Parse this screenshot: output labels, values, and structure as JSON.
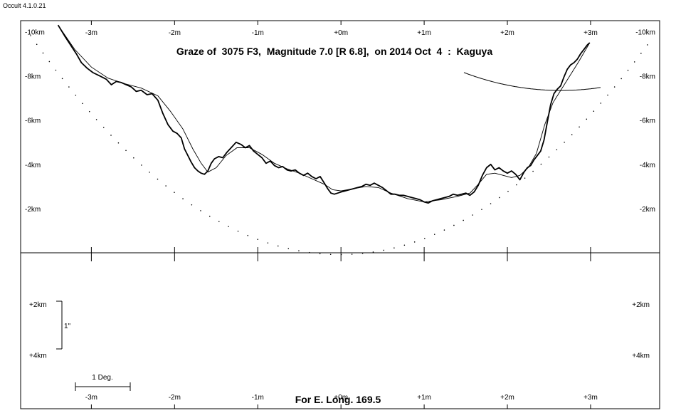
{
  "app": {
    "version_label": "Occult 4.1.0.21"
  },
  "chart_data": {
    "type": "line",
    "title": "Graze of  3075 F3,  Magnitude 7.0 [R 6.8],  on 2014 Oct  4  :  Kaguya",
    "footer": "For E. Long. 169.5",
    "x_tick_labels": [
      "-3m",
      "-2m",
      "-1m",
      "+0m",
      "+1m",
      "+2m",
      "+3m"
    ],
    "x_ticks": [
      -3,
      -2,
      -1,
      0,
      1,
      2,
      3
    ],
    "xlim": [
      -3.85,
      3.83
    ],
    "upper_ylim_km": [
      0,
      10.5
    ],
    "lower_ylim_km": [
      0,
      6.1
    ],
    "upper_y_ticks": [
      {
        "value": 10,
        "label": "-10km"
      },
      {
        "value": 8,
        "label": "-8km"
      },
      {
        "value": 6,
        "label": "-6km"
      },
      {
        "value": 4,
        "label": "-4km"
      },
      {
        "value": 2,
        "label": "-2km"
      }
    ],
    "lower_y_ticks": [
      {
        "value": 2,
        "label": "+2km"
      },
      {
        "value": 4,
        "label": "+4km"
      }
    ],
    "scale_bar_vertical": {
      "label": "1\"",
      "from_km": 2,
      "to_km": 4
    },
    "scale_bar_horizontal": {
      "label": "1 Deg.",
      "from_x": -3.18,
      "to_x": -2.52
    },
    "series": [
      {
        "x": [
          -3.4,
          -3.32,
          -3.25,
          -3.18,
          -3.12,
          -3.05,
          -2.98,
          -2.9,
          -2.82,
          -2.76,
          -2.7,
          -2.64,
          -2.58,
          -2.52,
          -2.46,
          -2.4,
          -2.33,
          -2.27,
          -2.2,
          -2.14,
          -2.08,
          -2.02,
          -1.97,
          -1.92,
          -1.88,
          -1.84,
          -1.8,
          -1.76,
          -1.72,
          -1.68,
          -1.64,
          -1.6,
          -1.56,
          -1.52,
          -1.47,
          -1.42,
          -1.37,
          -1.32,
          -1.26,
          -1.2,
          -1.15,
          -1.1,
          -1.05,
          -1.0,
          -0.95,
          -0.9,
          -0.85,
          -0.8,
          -0.75,
          -0.7,
          -0.65,
          -0.6,
          -0.55,
          -0.5,
          -0.45,
          -0.4,
          -0.35,
          -0.3,
          -0.25,
          -0.2,
          -0.16,
          -0.12,
          -0.08,
          -0.04,
          0.0,
          0.05,
          0.1,
          0.15,
          0.2,
          0.25,
          0.3,
          0.35,
          0.4,
          0.45,
          0.5,
          0.55,
          0.6,
          0.65,
          0.7,
          0.75,
          0.8,
          0.85,
          0.9,
          0.95,
          1.0,
          1.05,
          1.1,
          1.15,
          1.2,
          1.25,
          1.3,
          1.35,
          1.4,
          1.45,
          1.5,
          1.55,
          1.6,
          1.65,
          1.7,
          1.75,
          1.8,
          1.85,
          1.9,
          1.95,
          2.0,
          2.05,
          2.1,
          2.15,
          2.2,
          2.24,
          2.28,
          2.32,
          2.36,
          2.4,
          2.44,
          2.48,
          2.52,
          2.56,
          2.6,
          2.64,
          2.68,
          2.72,
          2.76,
          2.8,
          2.84,
          2.88,
          2.92,
          2.96,
          2.99
        ],
        "y": [
          10.3,
          9.8,
          9.4,
          9.0,
          8.6,
          8.35,
          8.15,
          8.0,
          7.85,
          7.6,
          7.75,
          7.7,
          7.6,
          7.5,
          7.3,
          7.35,
          7.15,
          7.2,
          6.9,
          6.3,
          5.8,
          5.5,
          5.4,
          5.2,
          4.7,
          4.4,
          4.1,
          3.85,
          3.7,
          3.6,
          3.55,
          3.7,
          4.05,
          4.25,
          4.35,
          4.3,
          4.55,
          4.75,
          5.0,
          4.9,
          4.75,
          4.85,
          4.6,
          4.45,
          4.3,
          4.05,
          4.15,
          3.95,
          3.85,
          3.9,
          3.75,
          3.7,
          3.75,
          3.6,
          3.5,
          3.6,
          3.45,
          3.35,
          3.45,
          3.15,
          2.9,
          2.7,
          2.65,
          2.7,
          2.75,
          2.8,
          2.85,
          2.9,
          2.95,
          3.0,
          3.1,
          3.05,
          3.15,
          3.05,
          2.95,
          2.8,
          2.65,
          2.65,
          2.6,
          2.6,
          2.55,
          2.5,
          2.45,
          2.4,
          2.3,
          2.25,
          2.35,
          2.4,
          2.45,
          2.5,
          2.55,
          2.65,
          2.6,
          2.65,
          2.7,
          2.6,
          2.75,
          3.05,
          3.5,
          3.85,
          4.0,
          3.75,
          3.85,
          3.7,
          3.6,
          3.7,
          3.55,
          3.3,
          3.65,
          3.85,
          3.95,
          4.2,
          4.4,
          4.6,
          5.1,
          5.9,
          6.7,
          7.2,
          7.4,
          7.55,
          7.95,
          8.3,
          8.5,
          8.6,
          8.75,
          9.0,
          9.2,
          9.4,
          9.5
        ]
      },
      {
        "x": [
          -3.4,
          -3.2,
          -3.0,
          -2.8,
          -2.6,
          -2.4,
          -2.2,
          -2.05,
          -1.9,
          -1.78,
          -1.68,
          -1.6,
          -1.5,
          -1.38,
          -1.25,
          -1.1,
          -0.95,
          -0.8,
          -0.65,
          -0.5,
          -0.35,
          -0.2,
          -0.1,
          0.0,
          0.15,
          0.3,
          0.45,
          0.6,
          0.8,
          1.0,
          1.2,
          1.4,
          1.55,
          1.65,
          1.75,
          1.85,
          1.95,
          2.05,
          2.15,
          2.25,
          2.35,
          2.45,
          2.55,
          2.7,
          2.85,
          2.99
        ],
        "y": [
          10.3,
          9.2,
          8.4,
          7.9,
          7.65,
          7.45,
          7.1,
          6.4,
          5.6,
          4.7,
          4.05,
          3.65,
          3.85,
          4.4,
          4.75,
          4.75,
          4.45,
          4.05,
          3.8,
          3.6,
          3.35,
          3.1,
          2.85,
          2.8,
          2.9,
          3.0,
          2.95,
          2.7,
          2.45,
          2.3,
          2.4,
          2.55,
          2.7,
          3.1,
          3.55,
          3.6,
          3.5,
          3.4,
          3.5,
          3.85,
          4.5,
          5.8,
          6.8,
          7.7,
          8.6,
          9.5
        ]
      }
    ]
  }
}
